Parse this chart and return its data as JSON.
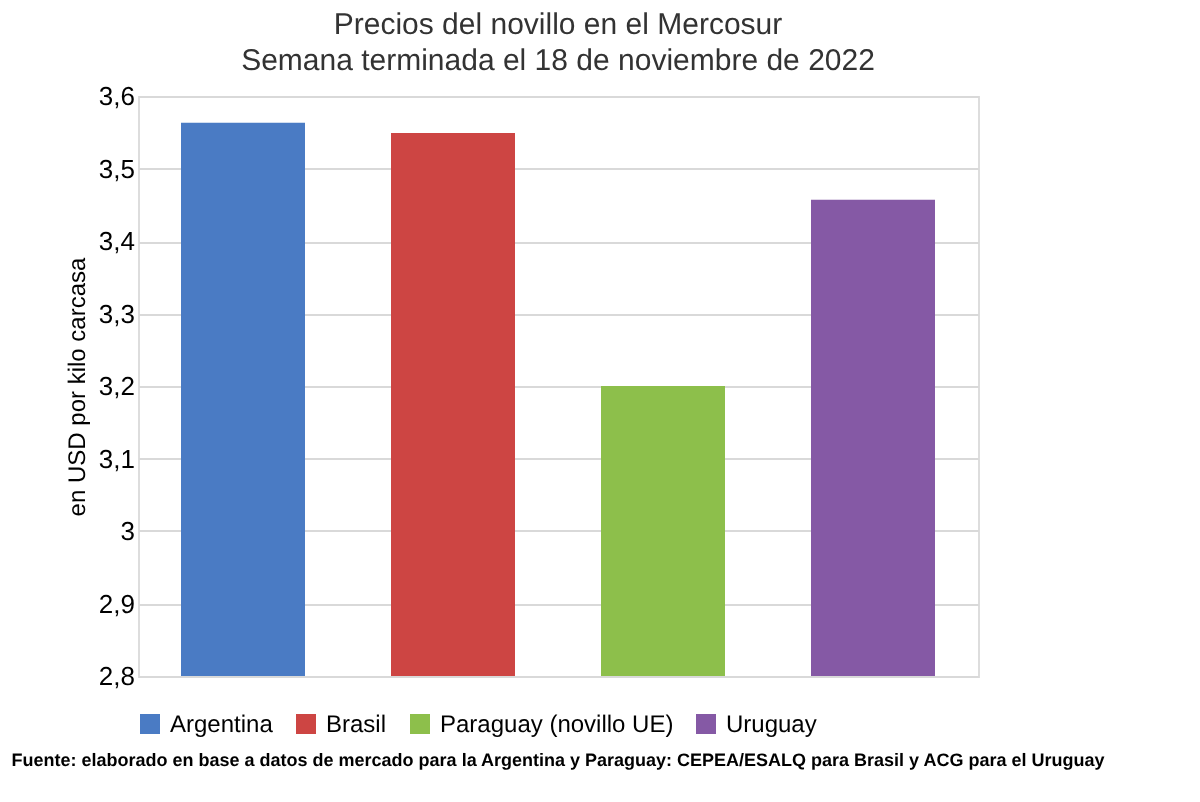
{
  "chart_data": {
    "type": "bar",
    "title": "Precios del novillo en el Mercosur",
    "subtitle": "Semana terminada el 18 de noviembre de 2022",
    "ylabel": "en USD por kilo carcasa",
    "categories": [
      null,
      null,
      null,
      null
    ],
    "series": [
      {
        "name": "Argentina",
        "color": "#4a7bc4",
        "values": [
          3.563,
          null,
          null,
          null
        ]
      },
      {
        "name": "Brasil",
        "color": "#cd4543",
        "values": [
          null,
          3.549,
          null,
          null
        ]
      },
      {
        "name": "Paraguay (novillo UE)",
        "color": "#8dbf4b",
        "values": [
          null,
          null,
          3.2,
          null
        ]
      },
      {
        "name": "Uruguay",
        "color": "#8559a5",
        "values": [
          null,
          null,
          null,
          3.457
        ]
      }
    ],
    "ylim": [
      2.8,
      3.6
    ],
    "yticks": [
      {
        "value": 2.8,
        "label": "2,8"
      },
      {
        "value": 2.9,
        "label": "2,9"
      },
      3,
      {
        "value": 3.1,
        "label": "3,1"
      },
      {
        "value": 3.2,
        "label": "3,2"
      },
      {
        "value": 3.3,
        "label": "3,3"
      },
      {
        "value": 3.4,
        "label": "3,4"
      },
      {
        "value": 3.5,
        "label": "3,5"
      },
      {
        "value": 3.6,
        "label": "3,6"
      }
    ],
    "grid": "y",
    "legend": "bottom",
    "tick_labels": "y",
    "annotations": [
      "Fuente: elaborado en base a datos de mercado para la Argentina y Paraguay: CEPEA/ESALQ para Brasil y ACG para el Uruguay"
    ]
  }
}
